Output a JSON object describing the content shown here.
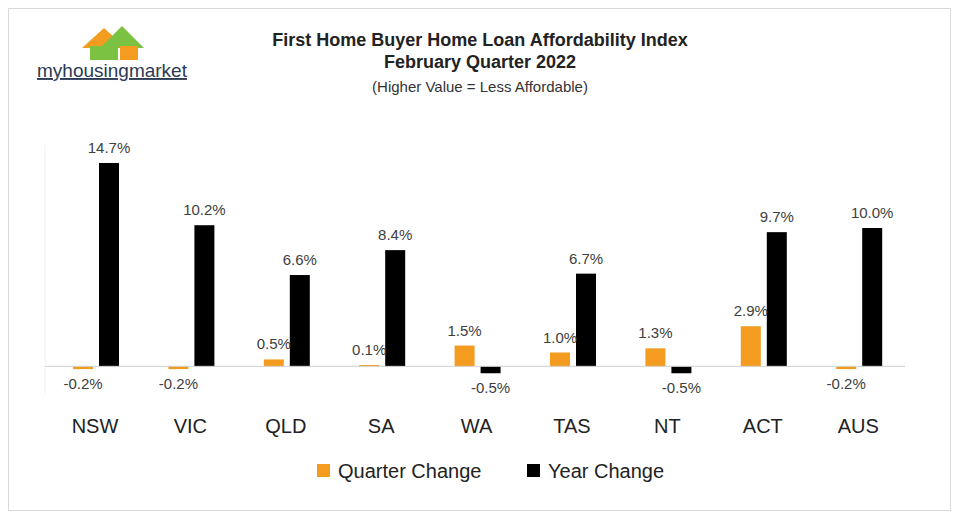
{
  "chart_data": {
    "type": "bar",
    "title": "First Home Buyer Home Loan Affordability Index",
    "subtitle": "February Quarter 2022",
    "annotations": [
      "myhousingmarket",
      "(Higher Value = Less Affordable)"
    ],
    "categories": [
      "NSW",
      "VIC",
      "QLD",
      "SA",
      "WA",
      "TAS",
      "NT",
      "ACT",
      "AUS"
    ],
    "series": [
      {
        "name": "Quarter Change",
        "color": "#f39c1f",
        "values": [
          -0.2,
          -0.2,
          0.5,
          0.1,
          1.5,
          1.0,
          1.3,
          2.9,
          -0.2
        ],
        "value_labels": [
          "-0.2%",
          "-0.2%",
          "0.5%",
          "0.1%",
          "1.5%",
          "1.0%",
          "1.3%",
          "2.9%",
          "-0.2%"
        ]
      },
      {
        "name": "Year Change",
        "color": "#000000",
        "values": [
          14.7,
          10.2,
          6.6,
          8.4,
          -0.5,
          6.7,
          -0.5,
          9.7,
          10.0
        ],
        "value_labels": [
          "14.7%",
          "10.2%",
          "6.6%",
          "8.4%",
          "-0.5%",
          "6.7%",
          "-0.5%",
          "9.7%",
          "10.0%"
        ]
      }
    ],
    "ylim": [
      -2,
      16
    ],
    "yticks": [
      0
    ],
    "grid": false,
    "legend": "bottom",
    "data_labels": true,
    "tick_labels": false
  }
}
